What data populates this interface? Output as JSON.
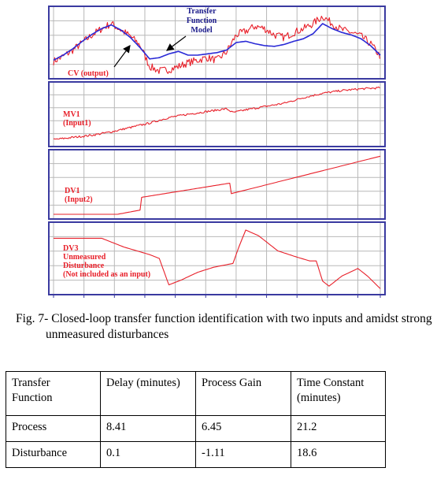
{
  "figure": {
    "panels": [
      {
        "id": "cv",
        "labels": [
          "CV (output)"
        ],
        "model_label": [
          "Transfer",
          "Function",
          "Model"
        ]
      },
      {
        "id": "mv1",
        "labels": [
          "MV1",
          "(Input1)"
        ]
      },
      {
        "id": "dv1",
        "labels": [
          "DV1",
          "(Input2)"
        ]
      },
      {
        "id": "dv3",
        "labels": [
          "DV3",
          "Unmeasured",
          "Disturbance",
          "(Not included as an input)"
        ]
      }
    ],
    "colors": {
      "frame": "#3a3aa0",
      "grid": "#b8b8b8",
      "measured": "#e8202a",
      "model": "#2a2ad6",
      "label_red": "#e8202a",
      "label_blue": "#1a1a8a"
    }
  },
  "chart_data": [
    {
      "type": "line",
      "title": "",
      "xlabel": "",
      "ylabel": "",
      "grid": true,
      "x": [
        0,
        3,
        6,
        9,
        12,
        15,
        18,
        21,
        24,
        27,
        30,
        33,
        36,
        39,
        42,
        45,
        48,
        51,
        54,
        57,
        60,
        63,
        66,
        69,
        72,
        75,
        78,
        81,
        84,
        87,
        90,
        93,
        96,
        99,
        102
      ],
      "series": [
        {
          "name": "CV (output)",
          "values": [
            0.2,
            0.28,
            0.38,
            0.5,
            0.62,
            0.72,
            0.8,
            0.7,
            0.6,
            0.46,
            0.12,
            0.05,
            0.07,
            0.12,
            0.18,
            0.22,
            0.26,
            0.22,
            0.35,
            0.62,
            0.68,
            0.76,
            0.72,
            0.62,
            0.58,
            0.66,
            0.72,
            0.8,
            0.92,
            0.8,
            0.7,
            0.66,
            0.6,
            0.48,
            0.28
          ]
        },
        {
          "name": "Transfer Function Model",
          "values": [
            0.22,
            0.3,
            0.4,
            0.52,
            0.63,
            0.72,
            0.78,
            0.7,
            0.58,
            0.42,
            0.24,
            0.26,
            0.32,
            0.36,
            0.3,
            0.3,
            0.32,
            0.34,
            0.38,
            0.5,
            0.52,
            0.48,
            0.45,
            0.44,
            0.47,
            0.52,
            0.56,
            0.64,
            0.8,
            0.72,
            0.66,
            0.62,
            0.56,
            0.45,
            0.3
          ]
        }
      ]
    },
    {
      "type": "line",
      "title": "",
      "xlabel": "",
      "ylabel": "",
      "grid": true,
      "x": [
        0,
        6,
        12,
        18,
        24,
        30,
        36,
        42,
        48,
        54,
        56,
        60,
        66,
        72,
        78,
        84,
        90,
        96,
        102
      ],
      "series": [
        {
          "name": "MV1 (Input1)",
          "values": [
            0.04,
            0.08,
            0.12,
            0.18,
            0.26,
            0.34,
            0.44,
            0.5,
            0.55,
            0.6,
            0.53,
            0.58,
            0.64,
            0.7,
            0.8,
            0.88,
            0.93,
            0.96,
            0.98
          ]
        }
      ]
    },
    {
      "type": "line",
      "title": "",
      "xlabel": "",
      "ylabel": "",
      "grid": true,
      "x": [
        0,
        20,
        27,
        27.1,
        55,
        55.1,
        102
      ],
      "series": [
        {
          "name": "DV1 (Input2)",
          "values": [
            0.0,
            0.0,
            0.07,
            0.28,
            0.52,
            0.34,
            0.97
          ]
        }
      ]
    },
    {
      "type": "line",
      "title": "",
      "xlabel": "",
      "ylabel": "",
      "grid": true,
      "x": [
        0,
        15,
        22,
        30,
        33,
        36,
        40,
        45,
        50,
        56,
        58,
        60,
        64,
        70,
        76,
        80,
        82,
        84,
        86,
        90,
        95,
        98,
        102
      ],
      "series": [
        {
          "name": "DV3 Unmeasured Disturbance (Not included as an input)",
          "values": [
            0.82,
            0.82,
            0.68,
            0.56,
            0.5,
            0.08,
            0.16,
            0.28,
            0.36,
            0.42,
            0.7,
            0.95,
            0.86,
            0.62,
            0.52,
            0.46,
            0.46,
            0.14,
            0.06,
            0.22,
            0.34,
            0.22,
            0.02
          ]
        }
      ]
    }
  ],
  "caption": {
    "line1": "Fig. 7- Closed-loop transfer function identification with two inputs and amidst strong",
    "line2": "unmeasured disturbances"
  },
  "table": {
    "headers": [
      [
        "Transfer",
        "Function"
      ],
      [
        "Delay (minutes)"
      ],
      [
        "Process Gain"
      ],
      [
        "Time Constant",
        "(minutes)"
      ]
    ],
    "rows": [
      [
        "Process",
        "8.41",
        "6.45",
        "21.2"
      ],
      [
        "Disturbance",
        "0.1",
        "-1.11",
        "18.6"
      ]
    ]
  }
}
